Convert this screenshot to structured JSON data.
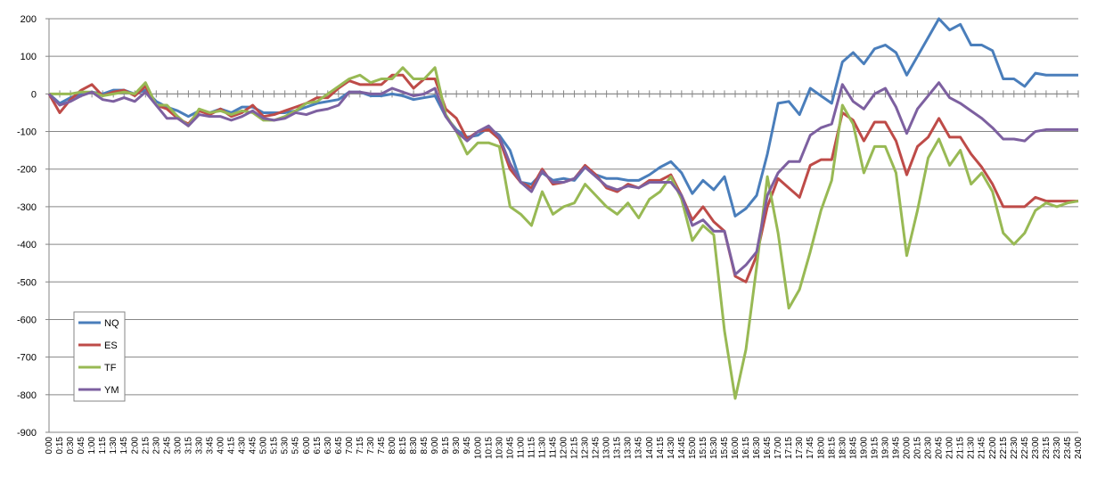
{
  "chart_data": {
    "type": "line",
    "categories": [
      "0:00",
      "0:15",
      "0:30",
      "0:45",
      "1:00",
      "1:15",
      "1:30",
      "1:45",
      "2:00",
      "2:15",
      "2:30",
      "2:45",
      "3:00",
      "3:15",
      "3:30",
      "3:45",
      "4:00",
      "4:15",
      "4:30",
      "4:45",
      "5:00",
      "5:15",
      "5:30",
      "5:45",
      "6:00",
      "6:15",
      "6:30",
      "6:45",
      "7:00",
      "7:15",
      "7:30",
      "7:45",
      "8:00",
      "8:15",
      "8:30",
      "8:45",
      "9:00",
      "9:15",
      "9:30",
      "9:45",
      "10:00",
      "10:15",
      "10:30",
      "10:45",
      "11:00",
      "11:15",
      "11:30",
      "11:45",
      "12:00",
      "12:15",
      "12:30",
      "12:45",
      "13:00",
      "13:15",
      "13:30",
      "13:45",
      "14:00",
      "14:15",
      "14:30",
      "14:45",
      "15:00",
      "15:15",
      "15:30",
      "15:45",
      "16:00",
      "16:15",
      "16:30",
      "16:45",
      "17:00",
      "17:15",
      "17:30",
      "17:45",
      "18:00",
      "18:15",
      "18:30",
      "18:45",
      "19:00",
      "19:15",
      "19:30",
      "19:45",
      "20:00",
      "20:15",
      "20:30",
      "20:45",
      "21:00",
      "21:15",
      "21:30",
      "21:45",
      "22:00",
      "22:15",
      "22:30",
      "22:45",
      "23:00",
      "23:15",
      "23:30",
      "23:45",
      "24:00"
    ],
    "series": [
      {
        "name": "NQ",
        "color": "#4a7ebb",
        "values": [
          0,
          -25,
          -10,
          0,
          5,
          0,
          10,
          10,
          0,
          10,
          -20,
          -35,
          -45,
          -60,
          -45,
          -50,
          -40,
          -50,
          -35,
          -35,
          -50,
          -50,
          -50,
          -45,
          -35,
          -25,
          -20,
          -15,
          5,
          5,
          -5,
          -5,
          0,
          -5,
          -15,
          -10,
          -5,
          -60,
          -95,
          -115,
          -110,
          -90,
          -110,
          -150,
          -235,
          -240,
          -210,
          -230,
          -225,
          -230,
          -195,
          -215,
          -225,
          -225,
          -230,
          -230,
          -215,
          -195,
          -180,
          -210,
          -265,
          -230,
          -255,
          -220,
          -325,
          -305,
          -270,
          -160,
          -25,
          -20,
          -55,
          15,
          -5,
          -25,
          85,
          110,
          80,
          120,
          130,
          110,
          50,
          100,
          150,
          200,
          170,
          185,
          130,
          130,
          115,
          40,
          40,
          20,
          55,
          50,
          50,
          50,
          50
        ]
      },
      {
        "name": "ES",
        "color": "#be4b48",
        "values": [
          0,
          -50,
          -15,
          10,
          25,
          -5,
          5,
          10,
          -5,
          20,
          -30,
          -40,
          -65,
          -80,
          -45,
          -55,
          -40,
          -60,
          -50,
          -30,
          -60,
          -55,
          -45,
          -35,
          -25,
          -10,
          -10,
          15,
          35,
          25,
          25,
          25,
          50,
          50,
          15,
          40,
          40,
          -40,
          -65,
          -120,
          -100,
          -95,
          -120,
          -200,
          -235,
          -250,
          -200,
          -240,
          -235,
          -225,
          -190,
          -215,
          -250,
          -260,
          -240,
          -250,
          -230,
          -230,
          -215,
          -270,
          -335,
          -300,
          -340,
          -365,
          -485,
          -500,
          -430,
          -300,
          -225,
          -250,
          -275,
          -190,
          -175,
          -175,
          -50,
          -70,
          -125,
          -75,
          -75,
          -125,
          -215,
          -140,
          -115,
          -65,
          -115,
          -115,
          -160,
          -195,
          -240,
          -300,
          -300,
          -300,
          -275,
          -285,
          -285,
          -285,
          -285
        ]
      },
      {
        "name": "TF",
        "color": "#98b954",
        "values": [
          0,
          0,
          0,
          5,
          5,
          -5,
          0,
          5,
          0,
          30,
          -30,
          -30,
          -60,
          -85,
          -40,
          -50,
          -45,
          -55,
          -45,
          -50,
          -70,
          -70,
          -60,
          -45,
          -25,
          -20,
          0,
          20,
          40,
          50,
          30,
          40,
          40,
          70,
          40,
          40,
          70,
          -55,
          -100,
          -160,
          -130,
          -130,
          -140,
          -300,
          -320,
          -350,
          -260,
          -320,
          -300,
          -290,
          -240,
          -270,
          -300,
          -320,
          -290,
          -330,
          -280,
          -260,
          -220,
          -280,
          -390,
          -350,
          -375,
          -630,
          -810,
          -680,
          -460,
          -220,
          -370,
          -570,
          -520,
          -420,
          -310,
          -230,
          -30,
          -80,
          -210,
          -140,
          -140,
          -210,
          -430,
          -310,
          -170,
          -120,
          -190,
          -150,
          -240,
          -210,
          -260,
          -370,
          -400,
          -370,
          -310,
          -290,
          -300,
          -290,
          -285
        ]
      },
      {
        "name": "YM",
        "color": "#7d60a0",
        "values": [
          0,
          -30,
          -20,
          -5,
          5,
          -15,
          -20,
          -10,
          -20,
          5,
          -30,
          -65,
          -65,
          -85,
          -55,
          -60,
          -60,
          -70,
          -60,
          -45,
          -65,
          -70,
          -65,
          -50,
          -55,
          -45,
          -40,
          -30,
          5,
          5,
          0,
          0,
          15,
          5,
          -5,
          0,
          15,
          -60,
          -100,
          -125,
          -100,
          -85,
          -115,
          -185,
          -235,
          -260,
          -205,
          -235,
          -235,
          -225,
          -195,
          -220,
          -245,
          -255,
          -245,
          -250,
          -235,
          -235,
          -235,
          -270,
          -350,
          -335,
          -365,
          -365,
          -480,
          -455,
          -420,
          -270,
          -210,
          -180,
          -180,
          -110,
          -90,
          -80,
          25,
          -20,
          -40,
          0,
          15,
          -35,
          -105,
          -40,
          -5,
          30,
          -10,
          -25,
          -45,
          -65,
          -90,
          -120,
          -120,
          -125,
          -100,
          -95,
          -95,
          -95,
          -95
        ]
      }
    ],
    "ylim": [
      -900,
      200
    ],
    "yticks": [
      -900,
      -800,
      -700,
      -600,
      -500,
      -400,
      -300,
      -200,
      -100,
      0,
      100,
      200
    ],
    "grid": true,
    "legend": "left"
  }
}
